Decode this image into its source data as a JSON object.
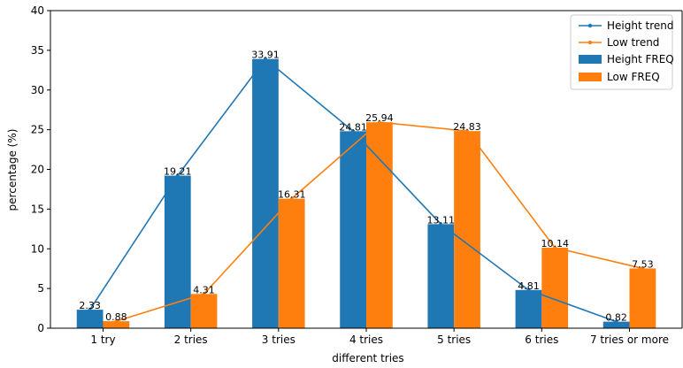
{
  "chart_data": {
    "type": "bar",
    "xlabel": "different tries",
    "ylabel": "percentage (%)",
    "ylim": [
      0,
      40
    ],
    "yticks": [
      0,
      5,
      10,
      15,
      20,
      25,
      30,
      35,
      40
    ],
    "categories": [
      "1 try",
      "2 tries",
      "3 tries",
      "4 tries",
      "5 tries",
      "6 tries",
      "7 tries or more"
    ],
    "series": [
      {
        "name": "Height FREQ",
        "kind": "bar",
        "color": "#1f77b4",
        "values": [
          2.33,
          19.21,
          33.91,
          24.81,
          13.11,
          4.81,
          0.82
        ]
      },
      {
        "name": "Low FREQ",
        "kind": "bar",
        "color": "#ff7f0e",
        "values": [
          0.88,
          4.31,
          16.31,
          25.94,
          24.83,
          10.14,
          7.53
        ]
      }
    ],
    "trend_lines": [
      {
        "name": "Height trend",
        "color": "#1f77b4",
        "values": [
          2.33,
          19.21,
          33.91,
          24.81,
          13.11,
          4.81,
          0.82
        ]
      },
      {
        "name": "Low trend",
        "color": "#ff7f0e",
        "values": [
          0.88,
          4.31,
          16.31,
          25.94,
          24.83,
          10.14,
          7.53
        ]
      }
    ],
    "data_labels": {
      "height": [
        "2.33",
        "19.21",
        "33.91",
        "24.81",
        "13.11",
        "4.81",
        "0.82"
      ],
      "low": [
        "0.88",
        "4.31",
        "16.31",
        "25.94",
        "24.83",
        "10.14",
        "7.53"
      ]
    },
    "legend": {
      "placement": "top-right",
      "entries": [
        "Height trend",
        "Low trend",
        "Height FREQ",
        "Low FREQ"
      ]
    },
    "grid": false
  }
}
